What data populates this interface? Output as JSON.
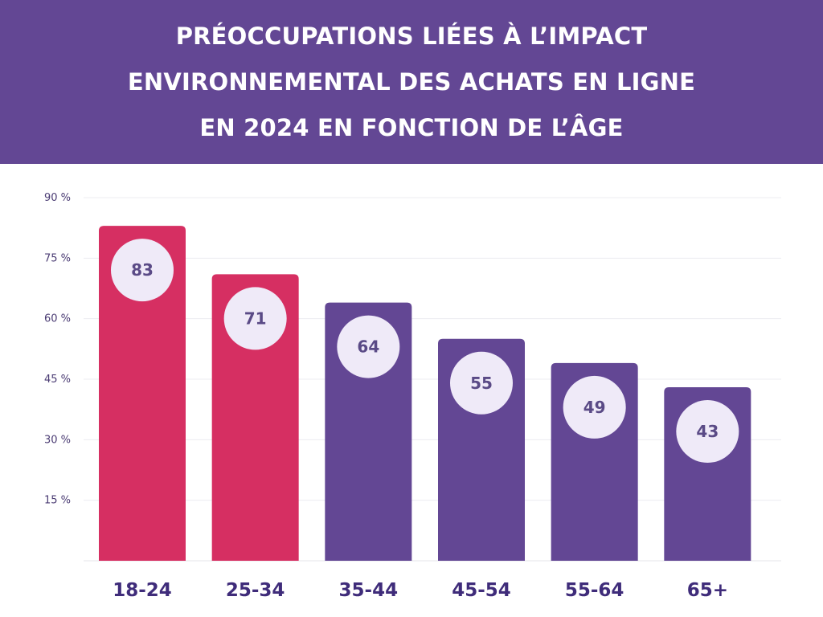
{
  "header": {
    "title_lines": [
      "PRÉOCCUPATIONS LIÉES À L’IMPACT",
      "ENVIRONNEMENTAL DES ACHATS EN LIGNE",
      "EN 2024 EN FONCTION DE L’ÂGE"
    ]
  },
  "chart_data": {
    "type": "bar",
    "title": "PRÉOCCUPATIONS LIÉES À L’IMPACT ENVIRONNEMENTAL DES ACHATS EN LIGNE EN 2024 EN FONCTION DE L’ÂGE",
    "xlabel": "",
    "ylabel": "",
    "categories": [
      "18-24",
      "25-34",
      "35-44",
      "45-54",
      "55-64",
      "65+"
    ],
    "values": [
      83,
      71,
      64,
      55,
      49,
      43
    ],
    "data_labels": [
      "83",
      "71",
      "64",
      "55",
      "49",
      "43"
    ],
    "ylim": [
      0,
      90
    ],
    "yticks": [
      15,
      30,
      45,
      60,
      75,
      90
    ],
    "ytick_labels": [
      "15 %",
      "30 %",
      "45 %",
      "60 %",
      "75 %",
      "90 %"
    ],
    "grid": true,
    "legend": "none",
    "colors": {
      "highlight": "#d62f62",
      "base": "#634794",
      "label_circle": "#efeaf8",
      "banner": "#634794"
    },
    "highlight_categories": [
      "18-24",
      "25-34"
    ]
  }
}
